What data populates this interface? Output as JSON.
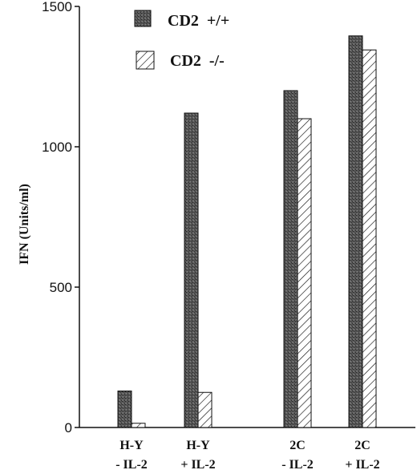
{
  "chart_data": {
    "type": "bar",
    "categories": [
      [
        "H-Y",
        "-  IL-2"
      ],
      [
        "H-Y",
        "+  IL-2"
      ],
      [
        "2C",
        "-  IL-2"
      ],
      [
        "2C",
        "+  IL-2"
      ]
    ],
    "series": [
      {
        "name": "CD2  +/+",
        "values": [
          130,
          1120,
          1200,
          1395
        ],
        "fill": "dark-stipple",
        "color": "#555555"
      },
      {
        "name": "CD2  -/-",
        "values": [
          15,
          125,
          1100,
          1345
        ],
        "fill": "diagonal-hatch",
        "color": "#ffffff"
      }
    ],
    "title": "",
    "xlabel": "",
    "ylabel": "IFN    (Units/ml)",
    "ylim": [
      0,
      1500
    ],
    "yticks": [
      "0",
      "500",
      "1000",
      "1500"
    ],
    "grid": false,
    "legend_position": "top-center"
  }
}
